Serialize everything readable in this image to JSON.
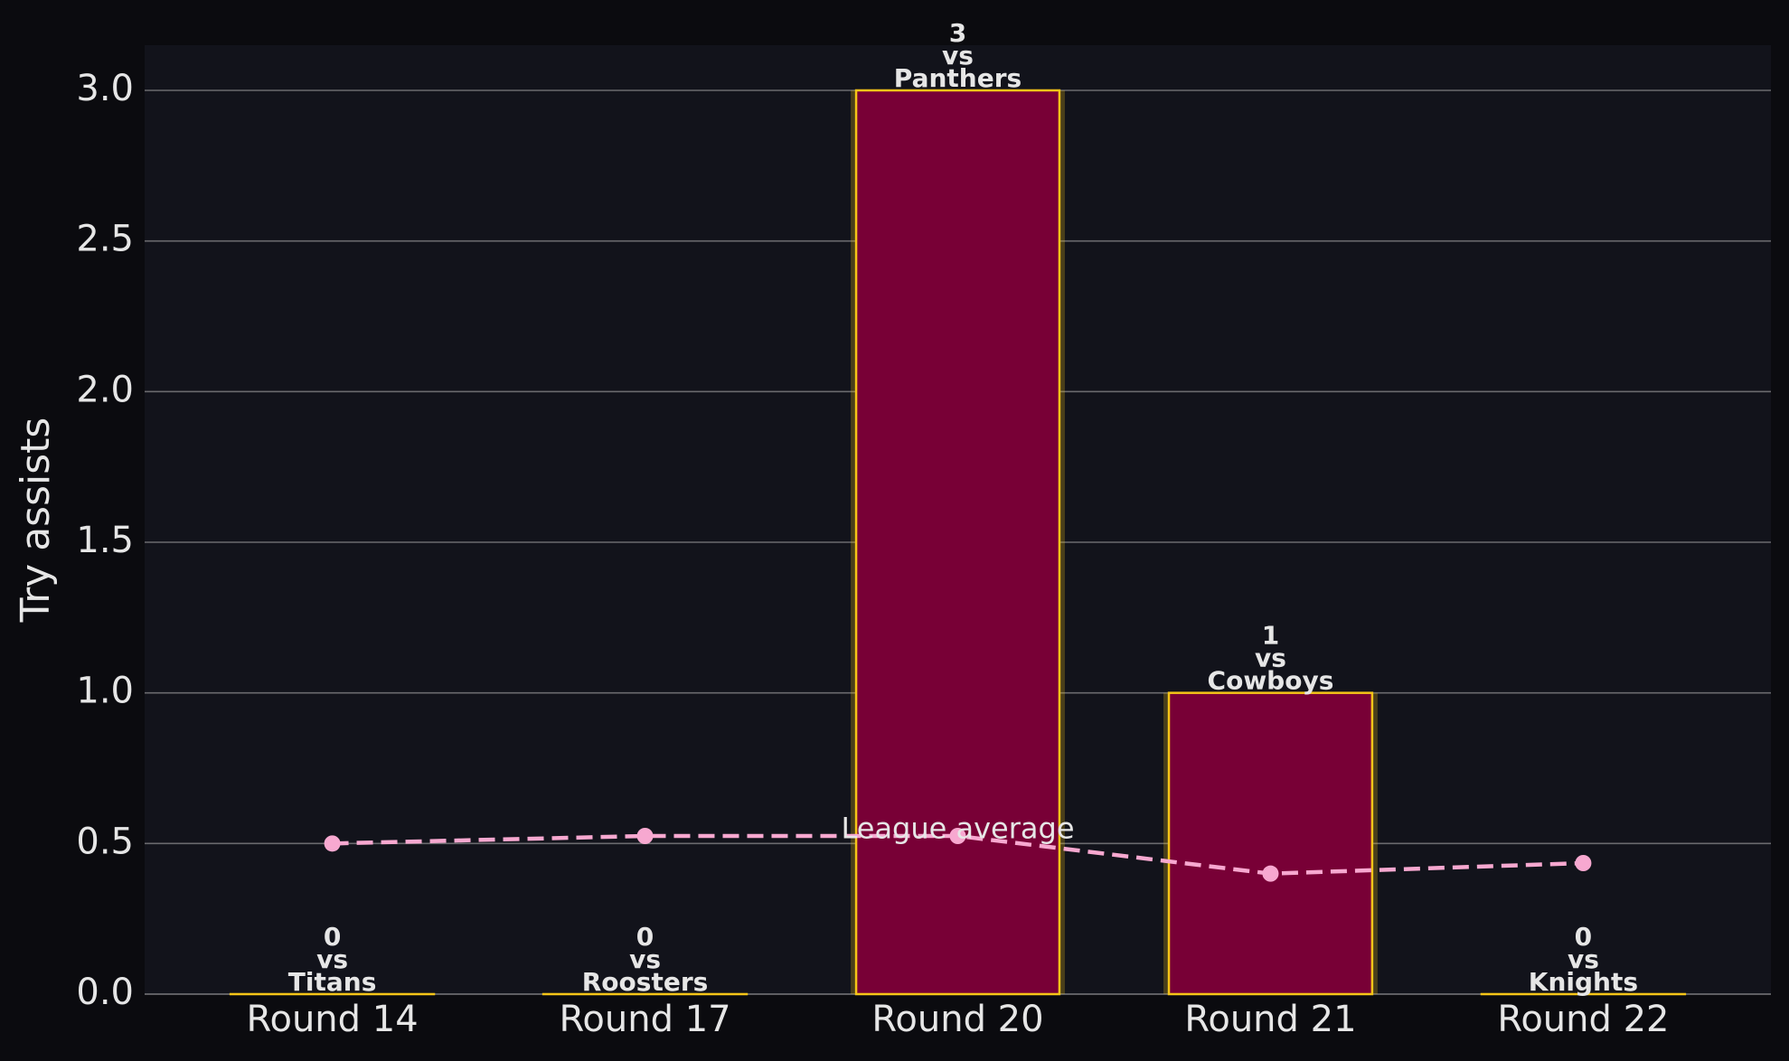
{
  "chart_data": {
    "type": "bar",
    "y_label": "Try assists",
    "categories": [
      "Round 14",
      "Round 17",
      "Round 20",
      "Round 21",
      "Round 22"
    ],
    "values": [
      0,
      0,
      3,
      1,
      0
    ],
    "value_labels": [
      "0\nvs\nTitans",
      "0\nvs\nRoosters",
      "3\nvs\nPanthers",
      "1\nvs\nCowboys",
      "0\nvs\nKnights"
    ],
    "color": "#780036",
    "edge_color": "#f5c518",
    "series": [
      {
        "type": "line",
        "name": "League average",
        "color": "#f7a8d0",
        "values": [
          0.5,
          0.525,
          0.525,
          0.4,
          0.435
        ]
      }
    ],
    "annotations": [
      {
        "text": "League average",
        "category": 2,
        "y": 0.55
      }
    ],
    "ylim": [
      0,
      3.15
    ],
    "yticks": [
      {
        "value": 0,
        "label": "0.0"
      },
      0.5,
      {
        "value": 1,
        "label": "1.0"
      },
      1.5,
      {
        "value": 2,
        "label": "2.0"
      },
      2.5,
      {
        "value": 3,
        "label": "3.0"
      }
    ],
    "grid": true
  }
}
